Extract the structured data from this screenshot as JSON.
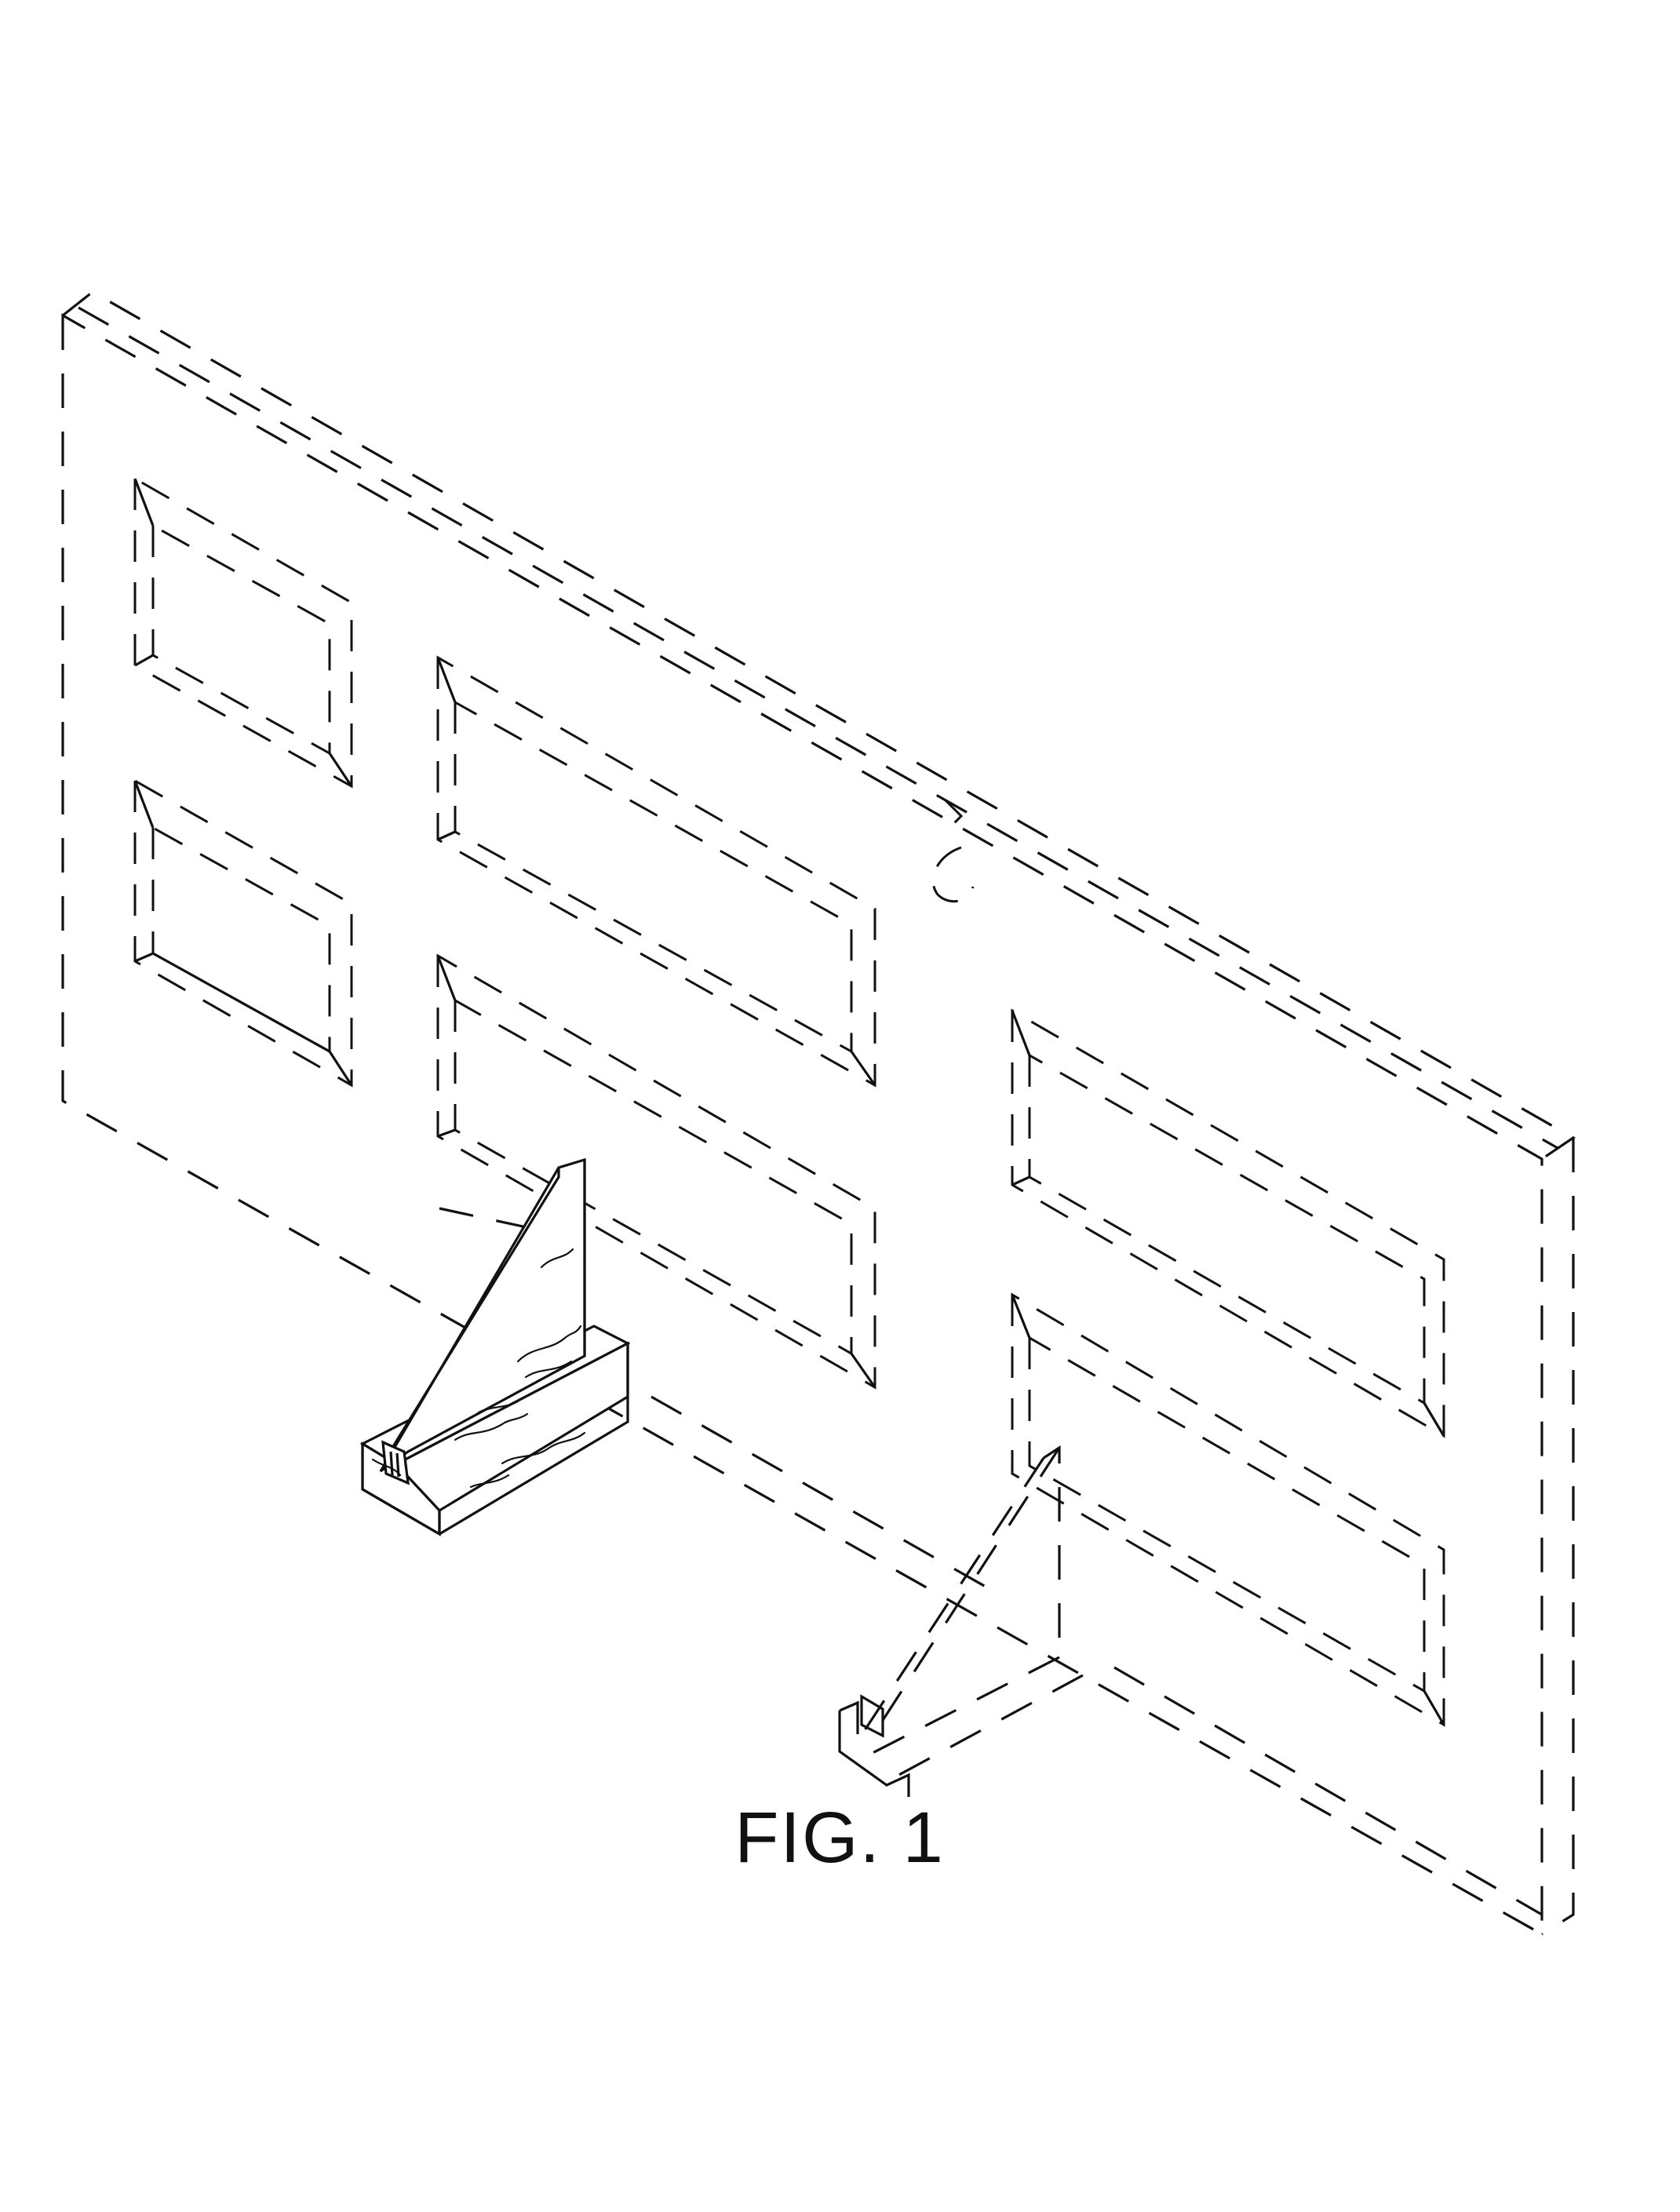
{
  "figure": {
    "caption": "FIG. 1"
  },
  "colors": {
    "line": "#111111",
    "background": "#ffffff"
  }
}
